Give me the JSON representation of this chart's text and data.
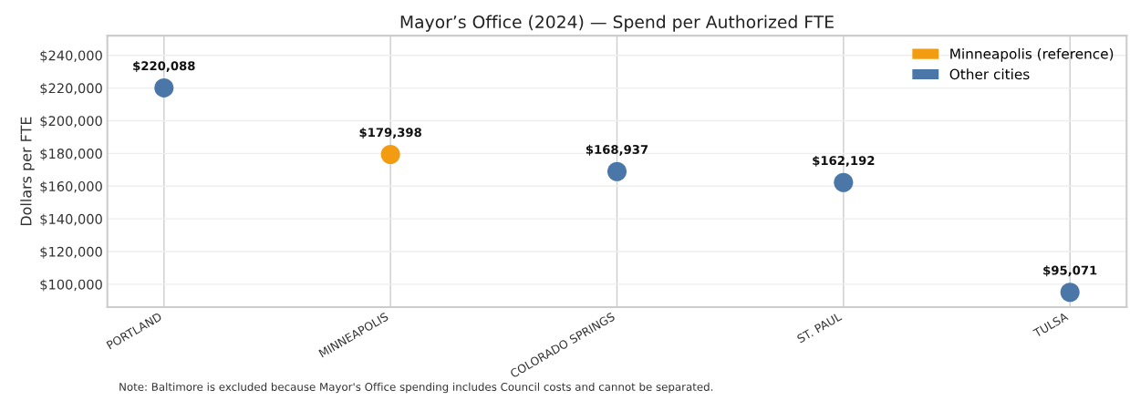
{
  "chart_data": {
    "type": "scatter",
    "title": "Mayor’s Office (2024) — Spend per Authorized FTE",
    "ylabel": "Dollars per FTE",
    "categories": [
      "PORTLAND",
      "MINNEAPOLIS",
      "COLORADO SPRINGS",
      "ST. PAUL",
      "TULSA"
    ],
    "series": [
      {
        "name": "Minneapolis (reference)",
        "color": "#f39c12",
        "values": [
          null,
          179398,
          null,
          null,
          null
        ],
        "value_labels": [
          null,
          "$179,398",
          null,
          null,
          null
        ]
      },
      {
        "name": "Other cities",
        "color": "#4a76a8",
        "values": [
          220088,
          null,
          168937,
          162192,
          95071
        ],
        "value_labels": [
          "$220,088",
          null,
          "$168,937",
          "$162,192",
          "$95,071"
        ]
      }
    ],
    "ylim": [
      86000,
      252000
    ],
    "yticks": [
      {
        "value": 100000,
        "label": "$100,000"
      },
      {
        "value": 120000,
        "label": "$120,000"
      },
      {
        "value": 140000,
        "label": "$140,000"
      },
      {
        "value": 160000,
        "label": "$160,000"
      },
      {
        "value": 180000,
        "label": "$180,000"
      },
      {
        "value": 200000,
        "label": "$200,000"
      },
      {
        "value": 220000,
        "label": "$220,000"
      },
      {
        "value": 240000,
        "label": "$240,000"
      }
    ],
    "grid": true,
    "legend": "top right",
    "marker": "circle",
    "annotations": [
      "Note: Baltimore is excluded because Mayor's Office spending includes Council costs and cannot be separated."
    ]
  }
}
